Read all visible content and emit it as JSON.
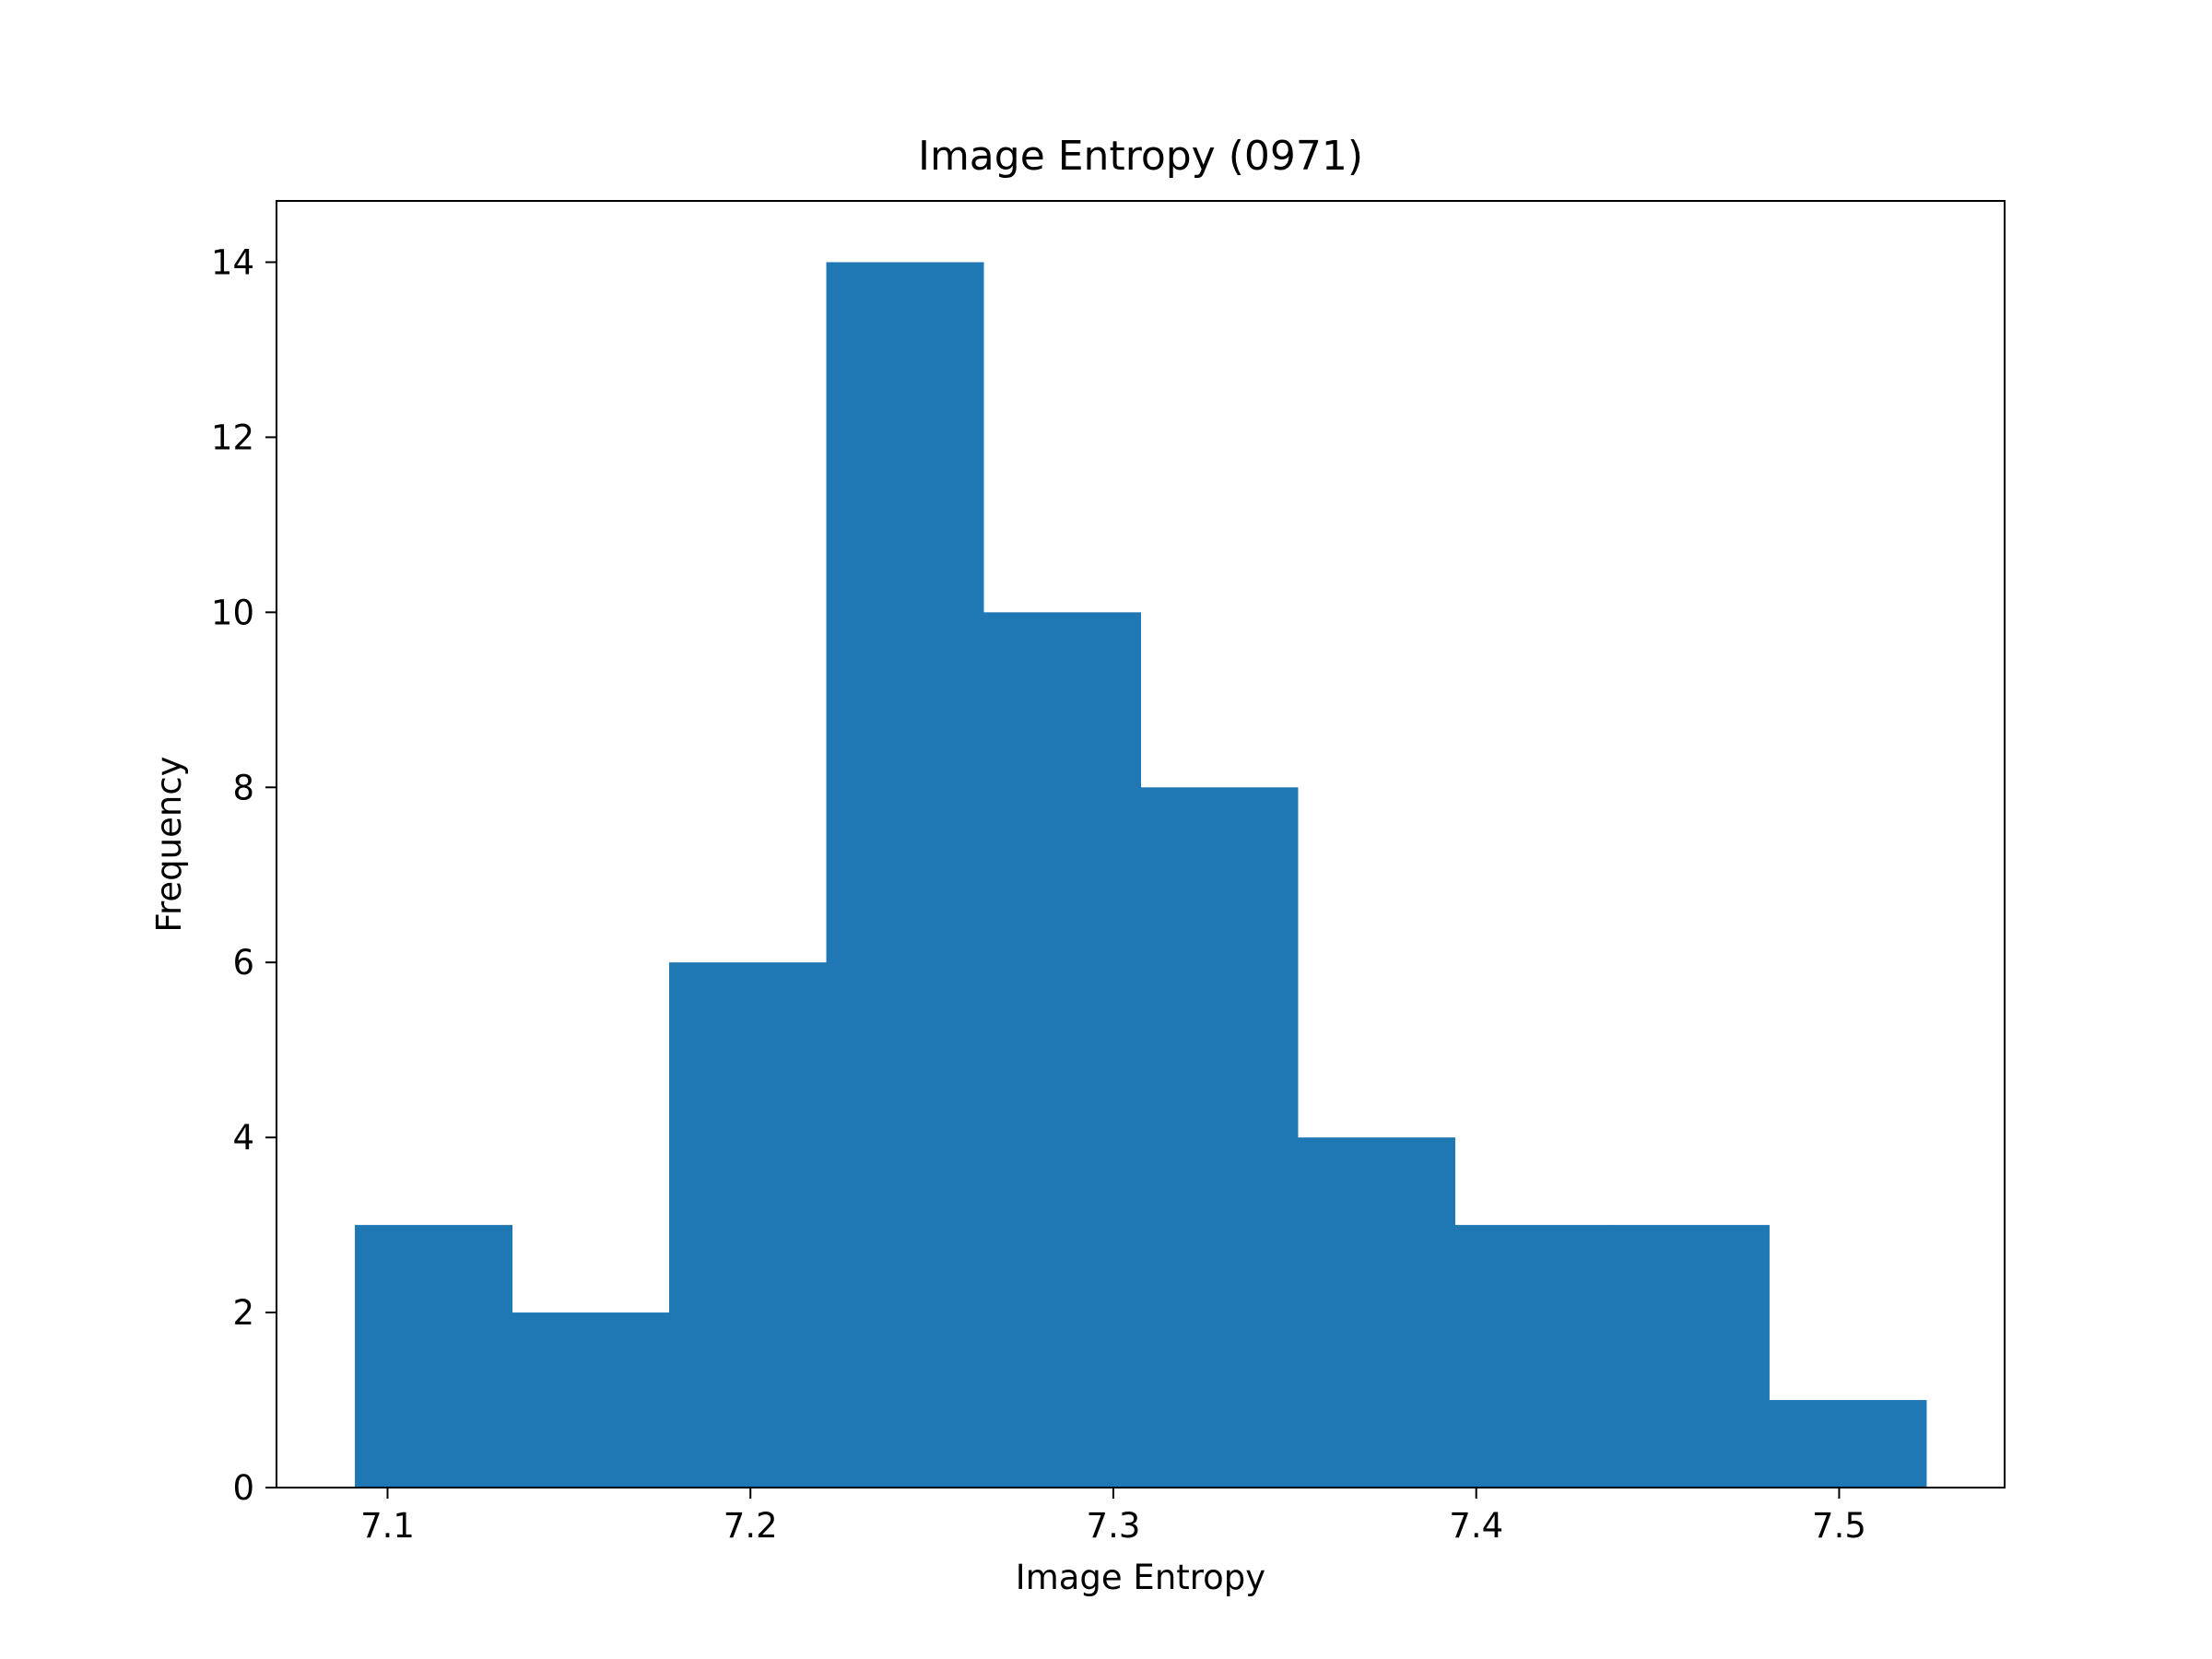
{
  "chart_data": {
    "type": "bar",
    "title": "Image Entropy (0971)",
    "xlabel": "Image Entropy",
    "ylabel": "Frequency",
    "bin_edges": [
      7.091,
      7.1343,
      7.1776,
      7.2209,
      7.2642,
      7.3075,
      7.3508,
      7.3941,
      7.4374,
      7.4807,
      7.524
    ],
    "values": [
      3,
      2,
      6,
      14,
      10,
      8,
      4,
      3,
      3,
      1
    ],
    "xlim": [
      7.0694,
      7.5456
    ],
    "ylim": [
      0,
      14.7
    ],
    "xticks": [
      7.1,
      7.2,
      7.3,
      7.4,
      7.5
    ],
    "xtick_labels": [
      "7.1",
      "7.2",
      "7.3",
      "7.4",
      "7.5"
    ],
    "yticks": [
      0,
      2,
      4,
      6,
      8,
      10,
      12,
      14
    ],
    "ytick_labels": [
      "0",
      "2",
      "4",
      "6",
      "8",
      "10",
      "12",
      "14"
    ],
    "bar_color": "#1f77b4",
    "grid": false,
    "legend": "none"
  }
}
